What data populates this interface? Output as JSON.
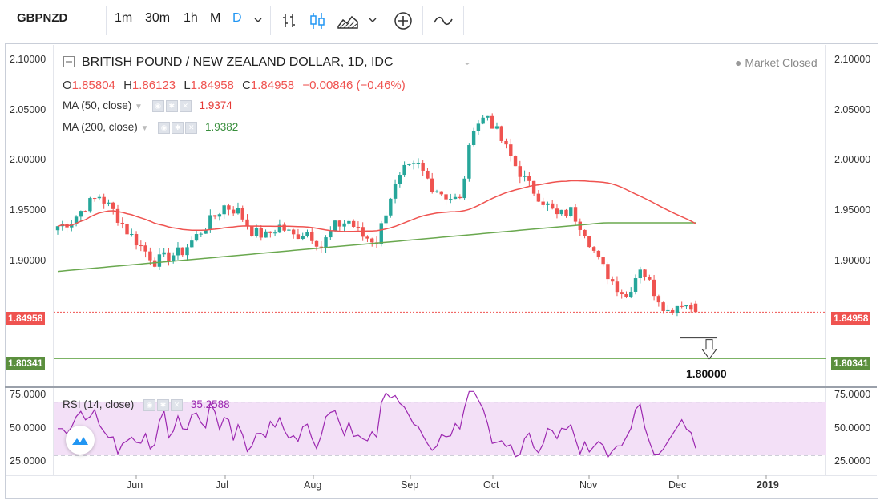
{
  "toolbar": {
    "symbol": "GBPNZD",
    "intervals": [
      "1m",
      "30m",
      "1h",
      "M",
      "D"
    ],
    "active_interval": "D",
    "icons": [
      "chevron-down-icon",
      "bar-chart-icon",
      "candles-icon",
      "area-chart-icon",
      "chevron-down-icon",
      "add-indicator-icon",
      "compare-icon"
    ]
  },
  "legend": {
    "title": "BRITISH POUND / NEW ZEALAND DOLLAR, 1D, IDC",
    "status": "Market Closed",
    "o_label": "O",
    "o_val": "1.85804",
    "h_label": "H",
    "h_val": "1.86123",
    "l_label": "L",
    "l_val": "1.84958",
    "c_label": "C",
    "c_val": "1.84958",
    "change": "−0.00846 (−0.46%)",
    "ma50_label": "MA (50, close)",
    "ma50_val": "1.9374",
    "ma200_label": "MA (200, close)",
    "ma200_val": "1.9382",
    "rsi_label": "RSI (14, close)",
    "rsi_val": "35.2588"
  },
  "price_axis": {
    "labels": [
      "2.10000",
      "2.05000",
      "2.00000",
      "1.95000",
      "1.90000"
    ],
    "last_price": "1.84958",
    "level_price": "1.80341",
    "target_label": "1.80000"
  },
  "rsi_axis": {
    "labels": [
      "75.0000",
      "50.0000",
      "25.0000"
    ]
  },
  "time_axis": {
    "labels": [
      "Jun",
      "Jul",
      "Aug",
      "Sep",
      "Oct",
      "Nov",
      "Dec",
      "2019"
    ]
  },
  "colors": {
    "up": "#26a69a",
    "down": "#ef5350",
    "ma50": "#ef5350",
    "ma200": "#6aa84f",
    "rsi": "#9c27b0",
    "rsi_band": "#f3e0f7",
    "level": "#6aa84f"
  },
  "chart_data": {
    "type": "candlestick",
    "title": "BRITISH POUND / NEW ZEALAND DOLLAR, 1D, IDC",
    "ylim": [
      1.775,
      2.115
    ],
    "ohlc_last": {
      "open": 1.85804,
      "high": 1.86123,
      "low": 1.84958,
      "close": 1.84958
    },
    "approx_closes": [
      1.935,
      1.94,
      1.955,
      1.965,
      1.95,
      1.93,
      1.915,
      1.9,
      1.905,
      1.91,
      1.925,
      1.94,
      1.955,
      1.95,
      1.93,
      1.925,
      1.935,
      1.925,
      1.93,
      1.915,
      1.935,
      1.94,
      1.925,
      1.92,
      1.965,
      1.99,
      1.995,
      1.975,
      1.965,
      1.96,
      2.035,
      2.045,
      2.02,
      1.995,
      1.975,
      1.96,
      1.945,
      1.95,
      1.93,
      1.9,
      1.88,
      1.865,
      1.895,
      1.87,
      1.85,
      1.86,
      1.84958
    ],
    "series": [
      {
        "name": "MA (50, close)",
        "last": 1.9374
      },
      {
        "name": "MA (200, close)",
        "last": 1.9382
      },
      {
        "name": "RSI (14, close)",
        "last": 35.2588,
        "ylim": [
          15,
          80
        ]
      }
    ],
    "levels": [
      1.80341,
      1.8
    ],
    "x_ticks": [
      "Jun",
      "Jul",
      "Aug",
      "Sep",
      "Oct",
      "Nov",
      "Dec",
      "2019"
    ]
  }
}
